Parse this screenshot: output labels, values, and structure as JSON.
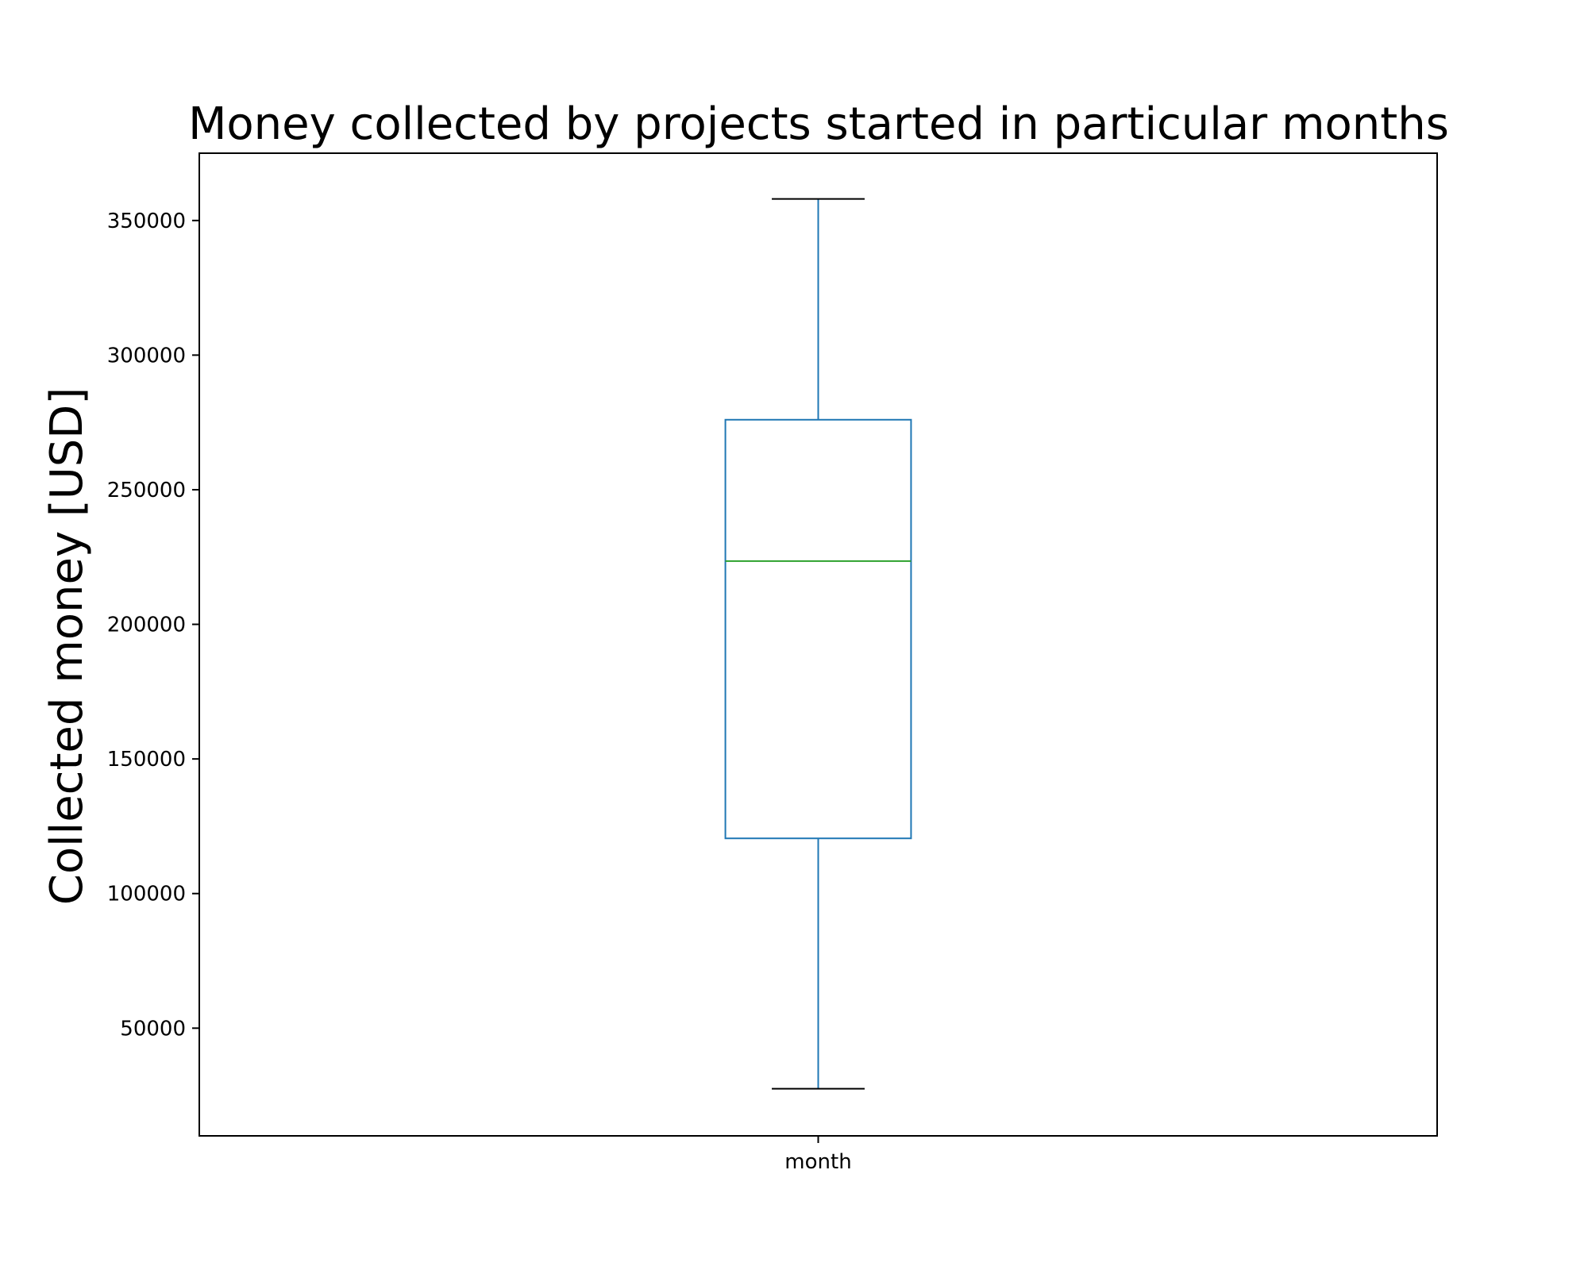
{
  "chart_data": {
    "type": "box",
    "title": "Money collected by projects started in particular months",
    "xlabel": "",
    "ylabel": "Collected money [USD]",
    "categories": [
      "month"
    ],
    "ylim": [
      10000,
      375000
    ],
    "yticks": [
      50000,
      100000,
      150000,
      200000,
      250000,
      300000,
      350000
    ],
    "ytick_labels": [
      "50000",
      "100000",
      "150000",
      "200000",
      "250000",
      "300000",
      "350000"
    ],
    "boxes": [
      {
        "category": "month",
        "whisker_low": 27500,
        "q1": 120500,
        "median": 223500,
        "q3": 276000,
        "whisker_high": 358000
      }
    ],
    "grid": false,
    "colors": {
      "box": "#1f77b4",
      "median": "#2ca02c",
      "cap": "#000000",
      "axes": "#000000"
    }
  }
}
